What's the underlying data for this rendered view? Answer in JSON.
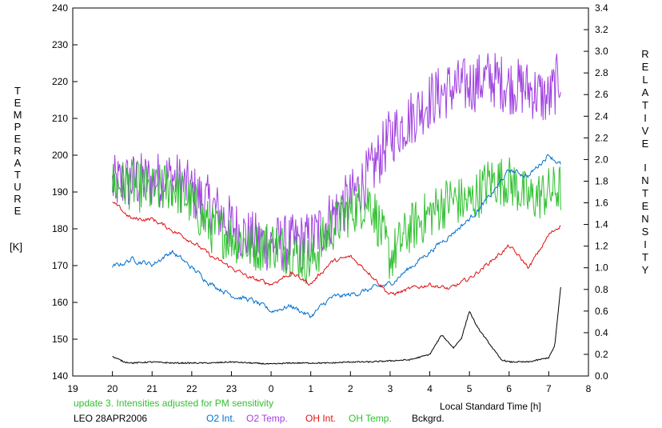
{
  "chart_data": {
    "type": "line",
    "title": "",
    "xlabel": "Local Standard Time [h]",
    "ylabel_left_letters": [
      "T",
      "E",
      "M",
      "P",
      "E",
      "R",
      "A",
      "T",
      "U",
      "R",
      "E"
    ],
    "ylabel_left_unit": "[K]",
    "ylabel_right_word1": [
      "R",
      "E",
      "L",
      "A",
      "T",
      "I",
      "V",
      "E"
    ],
    "ylabel_right_word2": [
      "I",
      "N",
      "T",
      "E",
      "N",
      "S",
      "I",
      "T",
      "Y"
    ],
    "x_range": [
      -5,
      8
    ],
    "x_tick_labels": [
      "19",
      "20",
      "21",
      "22",
      "23",
      "0",
      "1",
      "2",
      "3",
      "4",
      "5",
      "6",
      "7",
      "8"
    ],
    "y_left_range": [
      140,
      240
    ],
    "y_left_ticks": [
      "140",
      "150",
      "160",
      "170",
      "180",
      "190",
      "200",
      "210",
      "220",
      "230",
      "240"
    ],
    "y_right_range": [
      0.0,
      3.4
    ],
    "y_right_ticks": [
      "0.0",
      "0.2",
      "0.4",
      "0.6",
      "0.8",
      "1.0",
      "1.2",
      "1.4",
      "1.6",
      "1.8",
      "2.0",
      "2.2",
      "2.4",
      "2.6",
      "2.8",
      "3.0",
      "3.2",
      "3.4"
    ],
    "grid": false,
    "annotation": "update 3. Intensities adjusted for PM sensitivity",
    "station": "LEO 28APR2006",
    "series": [
      {
        "name": "O2 Int.",
        "color": "#0070d0",
        "axis": "right",
        "x": [
          -4,
          -3.5,
          -3,
          -2.5,
          -2,
          -1.5,
          -1,
          -0.5,
          0,
          0.5,
          1,
          1.5,
          2,
          2.5,
          3,
          3.5,
          4,
          4.5,
          5,
          5.5,
          6,
          6.5,
          7,
          7.3
        ],
        "y": [
          1.0,
          1.08,
          1.03,
          1.15,
          1.0,
          0.85,
          0.75,
          0.7,
          0.6,
          0.65,
          0.55,
          0.72,
          0.75,
          0.8,
          0.85,
          1.0,
          1.15,
          1.3,
          1.45,
          1.65,
          1.9,
          1.85,
          2.05,
          1.95
        ],
        "noise": 0.03
      },
      {
        "name": "O2 Temp.",
        "color": "#a040e0",
        "axis": "left",
        "x": [
          -4,
          -3.5,
          -3,
          -2.5,
          -2,
          -1.5,
          -1,
          -0.5,
          0,
          0.5,
          1,
          1.5,
          2,
          2.5,
          3,
          3.5,
          4,
          4.5,
          5,
          5.5,
          6,
          6.5,
          7,
          7.3
        ],
        "y": [
          192,
          193,
          193,
          194,
          190,
          186,
          181,
          177,
          176,
          176,
          177,
          183,
          188,
          195,
          205,
          210,
          215,
          218,
          219,
          221,
          219,
          218,
          215,
          222
        ],
        "noise": 8
      },
      {
        "name": "OH Int.",
        "color": "#e01010",
        "axis": "right",
        "x": [
          -4,
          -3.5,
          -3,
          -2.5,
          -2,
          -1.5,
          -1,
          -0.5,
          0,
          0.5,
          1,
          1.5,
          2,
          2.5,
          3,
          3.5,
          4,
          4.5,
          5,
          5.5,
          6,
          6.5,
          7,
          7.3
        ],
        "y": [
          1.6,
          1.45,
          1.45,
          1.35,
          1.25,
          1.1,
          1.0,
          0.9,
          0.85,
          0.95,
          0.85,
          1.05,
          1.1,
          0.95,
          0.75,
          0.8,
          0.85,
          0.8,
          0.9,
          1.05,
          1.2,
          1.0,
          1.3,
          1.4
        ],
        "noise": 0.025
      },
      {
        "name": "OH Temp.",
        "color": "#30c030",
        "axis": "left",
        "x": [
          -4,
          -3.5,
          -3,
          -2.5,
          -2,
          -1.5,
          -1,
          -0.5,
          0,
          0.5,
          1,
          1.5,
          2,
          2.5,
          3,
          3.5,
          4,
          4.5,
          5,
          5.5,
          6,
          6.5,
          7,
          7.3
        ],
        "y": [
          192,
          192,
          190,
          192,
          187,
          180,
          178,
          175,
          176,
          174,
          171,
          180,
          185,
          188,
          172,
          180,
          184,
          188,
          187,
          193,
          193,
          188,
          190,
          191
        ],
        "noise": 7
      },
      {
        "name": "Bckgrd.",
        "color": "#000000",
        "axis": "right",
        "x": [
          -4,
          -3.7,
          -3.5,
          -3,
          -2.5,
          -2,
          -1.5,
          -1,
          -0.5,
          0,
          0.5,
          1,
          1.5,
          2,
          2.5,
          3,
          3.5,
          4,
          4.3,
          4.6,
          4.8,
          5,
          5.2,
          5.5,
          5.8,
          6,
          6.5,
          7,
          7.15,
          7.3
        ],
        "y": [
          0.18,
          0.13,
          0.12,
          0.13,
          0.12,
          0.12,
          0.12,
          0.13,
          0.12,
          0.11,
          0.12,
          0.12,
          0.12,
          0.13,
          0.13,
          0.14,
          0.15,
          0.2,
          0.38,
          0.26,
          0.35,
          0.6,
          0.45,
          0.3,
          0.15,
          0.13,
          0.13,
          0.17,
          0.28,
          0.82
        ],
        "noise": 0.006
      }
    ]
  }
}
